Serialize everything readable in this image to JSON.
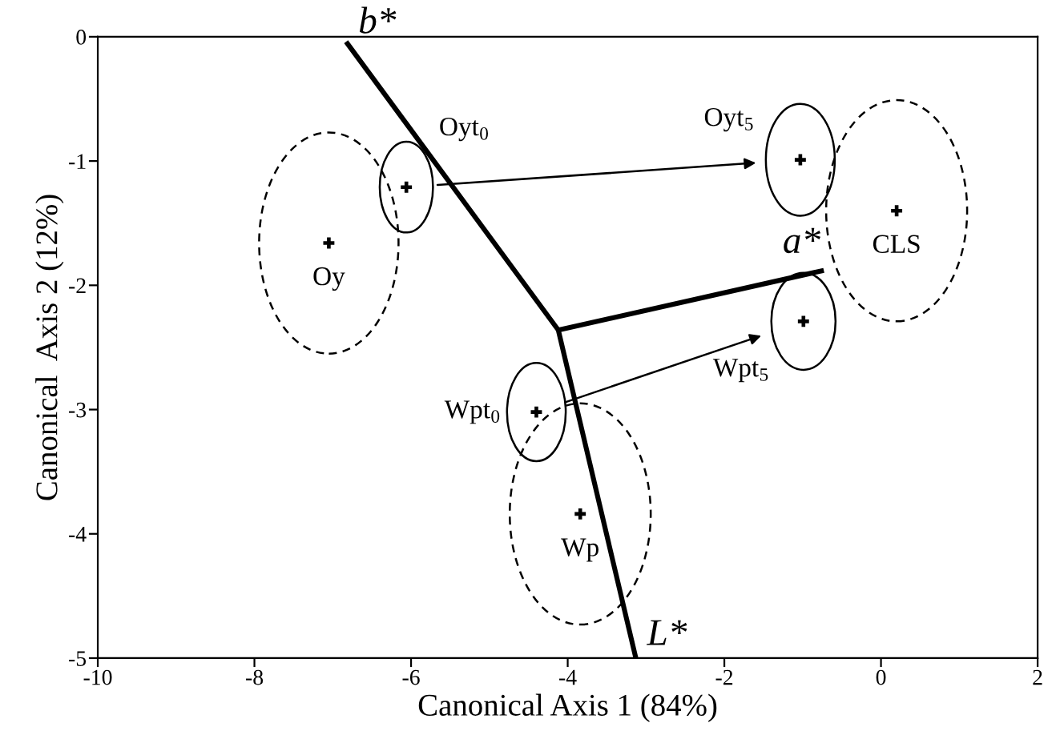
{
  "chart_data": {
    "type": "scatter",
    "xlabel": "Canonical Axis 1 (84%)",
    "ylabel": "Canonical  Axis 2 (12%)",
    "xlim": [
      -10,
      2
    ],
    "ylim": [
      -5,
      0
    ],
    "xticks": [
      -10,
      -8,
      -6,
      -4,
      -2,
      0,
      2
    ],
    "yticks": [
      -5,
      -4,
      -3,
      -2,
      -1,
      0
    ],
    "grid": false,
    "series": [
      {
        "type": "line",
        "line_style": "solid",
        "color": "#000000",
        "x": [
          -6.83,
          -4.12,
          -3.13
        ],
        "values": [
          -0.04,
          -2.36,
          -5.0
        ]
      },
      {
        "type": "line",
        "line_style": "solid",
        "color": "#000000",
        "x": [
          -4.12,
          -0.73
        ],
        "values": [
          -2.36,
          -1.88
        ]
      },
      {
        "marker": "cross",
        "color": "#000000",
        "x": [
          -7.05,
          -6.06,
          -1.03,
          0.2,
          -0.99,
          -4.4,
          -3.84
        ],
        "values": [
          -1.66,
          -1.21,
          -0.99,
          -1.4,
          -2.29,
          -3.02,
          -3.84
        ]
      }
    ],
    "annotations": [
      {
        "text": "Oy",
        "x": -7.05,
        "y": -1.66
      },
      {
        "text": "Oyt$_{0}$",
        "x": -6.06,
        "y": -1.21
      },
      {
        "text": "Oyt$_{5}$",
        "x": -1.03,
        "y": -0.99
      },
      {
        "text": "CLS",
        "x": 0.2,
        "y": -1.4
      },
      {
        "text": "Wpt$_{5}$",
        "x": -0.99,
        "y": -2.29
      },
      {
        "text": "Wpt$_{0}$",
        "x": -4.4,
        "y": -3.02
      },
      {
        "text": "Wp",
        "x": -3.84,
        "y": -3.84
      },
      {
        "text": "b*",
        "x": -6.83,
        "y": -0.04
      },
      {
        "text": "a*",
        "x": -0.73,
        "y": -1.88
      },
      {
        "text": "L*",
        "x": -3.13,
        "y": -5.0
      }
    ]
  }
}
